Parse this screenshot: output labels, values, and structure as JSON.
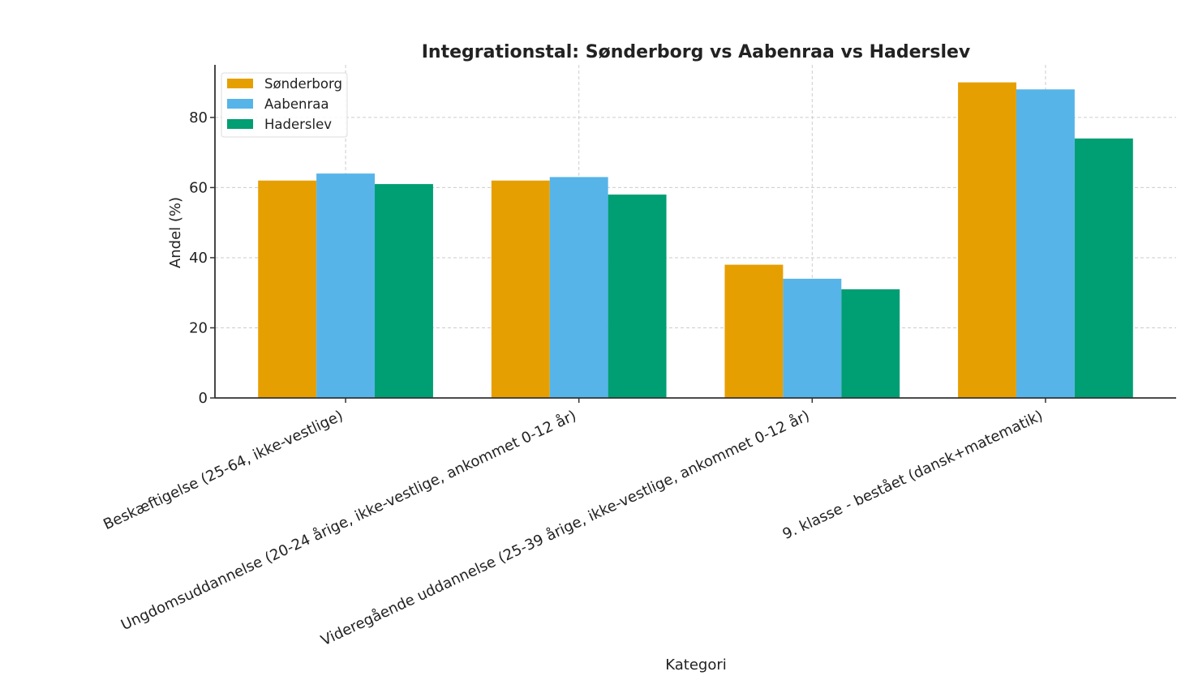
{
  "chart_data": {
    "type": "bar",
    "title": "Integrationstal: Sønderborg vs Aabenraa vs Haderslev",
    "xlabel": "Kategori",
    "ylabel": "Andel (%)",
    "ylim": [
      0,
      95
    ],
    "yticks": [
      0,
      20,
      40,
      60,
      80
    ],
    "grid": true,
    "legend_position": "top-left",
    "categories": [
      "Beskæftigelse (25-64, ikke-vestlige)",
      "Ungdomsuddannelse (20-24 årige, ikke-vestlige, ankommet 0-12 år)",
      "Videregående uddannelse (25-39 årige, ikke-vestlige, ankommet 0-12 år)",
      "9. klasse - bestået (dansk+matematik)"
    ],
    "series": [
      {
        "name": "Sønderborg",
        "color": "#E69F00",
        "values": [
          62,
          62,
          38,
          90
        ]
      },
      {
        "name": "Aabenraa",
        "color": "#56B4E9",
        "values": [
          64,
          63,
          34,
          88
        ]
      },
      {
        "name": "Haderslev",
        "color": "#009E73",
        "values": [
          61,
          58,
          31,
          74
        ]
      }
    ]
  }
}
